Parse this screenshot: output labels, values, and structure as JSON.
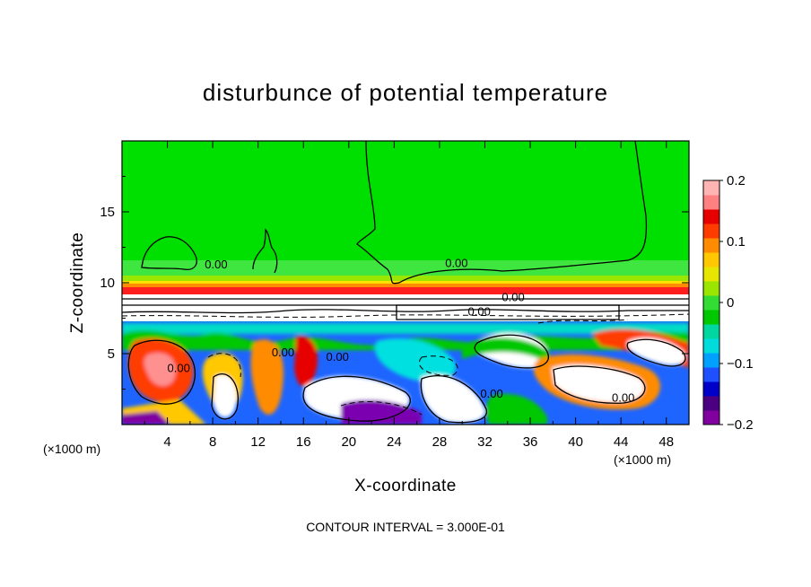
{
  "chart_data": {
    "type": "heatmap",
    "title": "disturbunce of potential temperature",
    "xlabel": "X-coordinate",
    "ylabel": "Z-coordinate",
    "x_unit": "(×1000 m)",
    "y_unit": "(×1000 m)",
    "xlim": [
      0,
      50
    ],
    "ylim": [
      0,
      20
    ],
    "x_ticks": [
      4,
      8,
      12,
      16,
      20,
      24,
      28,
      32,
      36,
      40,
      44,
      48
    ],
    "y_ticks": [
      5,
      10,
      15
    ],
    "footer": "CONTOUR INTERVAL = 3.000E-01",
    "colorbar": {
      "range": [
        -0.2,
        0.2
      ],
      "tick_values": [
        0.2,
        0.1,
        0,
        -0.1,
        -0.2
      ],
      "tick_labels": [
        "0.2",
        "0.1",
        "0",
        "−0.1",
        "−0.2"
      ],
      "colors": [
        "#8000a0",
        "#4b0082",
        "#0000c8",
        "#1e50ff",
        "#00a0ff",
        "#00dcdc",
        "#00d7a0",
        "#00c800",
        "#32dc32",
        "#9be600",
        "#e6e600",
        "#ffc800",
        "#ff8c00",
        "#ff3c00",
        "#e60000",
        "#ff8080",
        "#ffb4b4"
      ]
    },
    "contour_labels": [
      {
        "text": "0.00",
        "x": 29.5,
        "z": 11.1
      },
      {
        "text": "0.00",
        "x": 34.5,
        "z": 8.7
      },
      {
        "text": "0.00",
        "x": 31.5,
        "z": 7.7
      },
      {
        "text": "0.00",
        "x": 5.0,
        "z": 3.7
      },
      {
        "text": "0.00",
        "x": 14.2,
        "z": 4.8
      },
      {
        "text": "0.00",
        "x": 19.0,
        "z": 4.5
      },
      {
        "text": "0.00",
        "x": 32.6,
        "z": 1.9
      },
      {
        "text": "0.00",
        "x": 44.2,
        "z": 1.6
      },
      {
        "text": "0.00",
        "x": 8.3,
        "z": 11.0
      }
    ]
  }
}
